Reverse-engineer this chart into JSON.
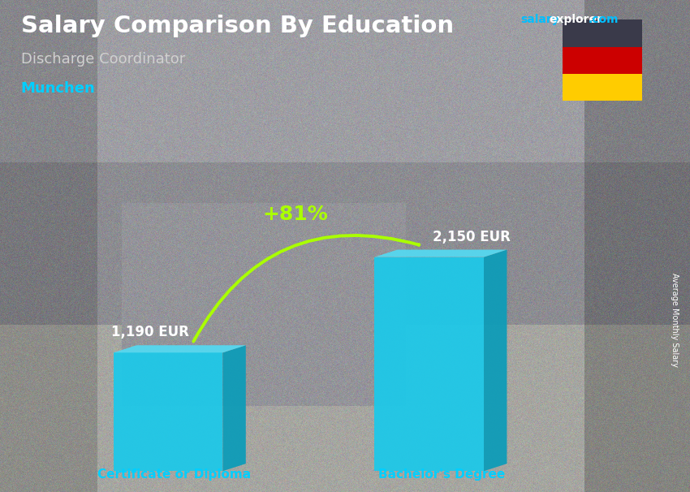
{
  "title": "Salary Comparison By Education",
  "subtitle": "Discharge Coordinator",
  "location": "Munchen",
  "categories": [
    "Certificate or Diploma",
    "Bachelor's Degree"
  ],
  "values": [
    1190,
    2150
  ],
  "value_labels": [
    "1,190 EUR",
    "2,150 EUR"
  ],
  "pct_change": "+81%",
  "bar_color_front": "#1EC8E8",
  "bar_color_side": "#0E9CB8",
  "bar_color_top": "#55D8F0",
  "bar_color_top2": "#80E8FF",
  "ylabel": "Average Monthly Salary",
  "title_color": "#FFFFFF",
  "subtitle_color": "#CCCCCC",
  "location_color": "#00CFFF",
  "category_color": "#00CFFF",
  "value_color": "#FFFFFF",
  "pct_color": "#AAFF00",
  "bg_color": "#808080",
  "figsize": [
    8.5,
    6.06
  ],
  "dpi": 100
}
